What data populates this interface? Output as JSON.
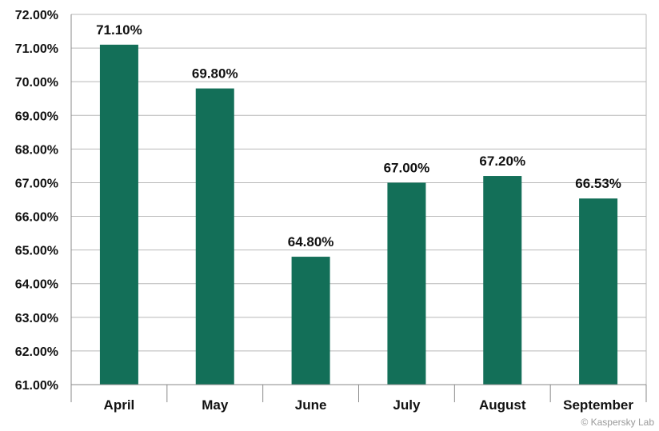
{
  "chart_data": {
    "type": "bar",
    "title": "",
    "xlabel": "",
    "ylabel": "",
    "categories": [
      "April",
      "May",
      "June",
      "July",
      "August",
      "September"
    ],
    "values": [
      71.1,
      69.8,
      64.8,
      67.0,
      67.2,
      66.53
    ],
    "data_labels": [
      "71.10%",
      "69.80%",
      "64.80%",
      "67.00%",
      "67.20%",
      "66.53%"
    ],
    "ylim": [
      61,
      72
    ],
    "yticks": [
      61,
      62,
      63,
      64,
      65,
      66,
      67,
      68,
      69,
      70,
      71,
      72
    ],
    "ytick_labels": [
      "61.00%",
      "62.00%",
      "63.00%",
      "64.00%",
      "65.00%",
      "66.00%",
      "67.00%",
      "68.00%",
      "69.00%",
      "70.00%",
      "71.00%",
      "72.00%"
    ],
    "grid": true,
    "legend": "none",
    "bar_color": "#136f58"
  },
  "copyright": "© Kaspersky Lab"
}
